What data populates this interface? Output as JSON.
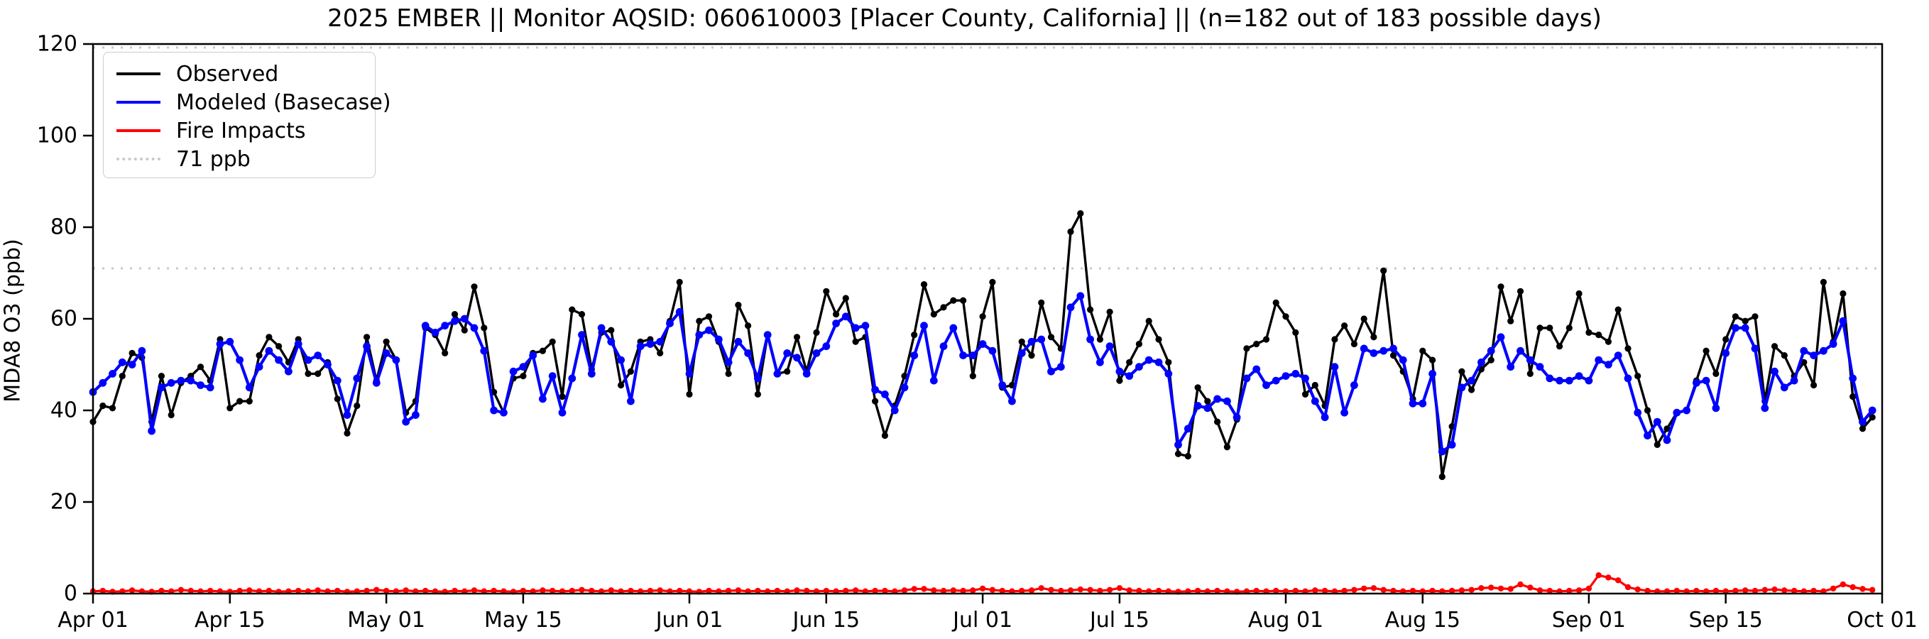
{
  "title": "2025 EMBER || Monitor AQSID: 060610003 [Placer County, California] || (n=182 out of 183 possible days)",
  "y_axis_label": "MDA8 O3 (ppb)",
  "legend": {
    "observed_label": "Observed",
    "modeled_label": "Modeled (Basecase)",
    "fire_label": "Fire Impacts",
    "threshold_label": "71 ppb"
  },
  "colors": {
    "observed": "#000000",
    "modeled": "#0000ff",
    "fire": "#ff0000",
    "threshold_line": "#c8c8c8",
    "axis": "#000000"
  },
  "chart_data": {
    "type": "line",
    "title": "2025 EMBER || Monitor AQSID: 060610003 [Placer County, California] || (n=182 out of 183 possible days)",
    "xlabel": "",
    "ylabel": "MDA8 O3 (ppb)",
    "ylim": [
      0,
      120
    ],
    "grid": false,
    "legend_position": "upper left",
    "x_start_date": "Apr 01",
    "x_end_date": "Oct 01",
    "days_total": 183,
    "threshold_ppb": 71,
    "x_ticks": [
      {
        "label": "Apr 01",
        "day": 0
      },
      {
        "label": "Apr 15",
        "day": 14
      },
      {
        "label": "May 01",
        "day": 30
      },
      {
        "label": "May 15",
        "day": 44
      },
      {
        "label": "Jun 01",
        "day": 61
      },
      {
        "label": "Jun 15",
        "day": 75
      },
      {
        "label": "Jul 01",
        "day": 91
      },
      {
        "label": "Jul 15",
        "day": 105
      },
      {
        "label": "Aug 01",
        "day": 122
      },
      {
        "label": "Aug 15",
        "day": 136
      },
      {
        "label": "Sep 01",
        "day": 153
      },
      {
        "label": "Sep 15",
        "day": 167
      },
      {
        "label": "Oct 01",
        "day": 183
      }
    ],
    "y_ticks": [
      0,
      20,
      40,
      60,
      80,
      100,
      120
    ],
    "series": [
      {
        "name": "Observed",
        "color": "#000000",
        "line_width": 3.4,
        "marker_radius": 4.6,
        "values": [
          37.5,
          41,
          40.5,
          47.5,
          52.5,
          51.5,
          37.5,
          47.5,
          39,
          46,
          47.5,
          49.5,
          46.5,
          55.5,
          40.5,
          42,
          42,
          52,
          56,
          54,
          50.5,
          55.5,
          48,
          48,
          50.5,
          42.5,
          35,
          41,
          56,
          46.5,
          55,
          51,
          39.5,
          42,
          58,
          56.5,
          52.5,
          61,
          57.5,
          67,
          58,
          44,
          39.5,
          47,
          47.5,
          52.5,
          53,
          55,
          43,
          62,
          61,
          49,
          57,
          57.5,
          45.5,
          48.5,
          55,
          55.5,
          52.5,
          59.5,
          68,
          43.5,
          59.5,
          60.5,
          55,
          48,
          63,
          58.5,
          43.5,
          56.5,
          48,
          48.5,
          56,
          48.5,
          57,
          66,
          61,
          64.5,
          55,
          56,
          42,
          34.5,
          41,
          47.5,
          56.5,
          67.5,
          61,
          62.5,
          64,
          64,
          47.5,
          60.5,
          68,
          45,
          45.5,
          55,
          52,
          63.5,
          56,
          53.5,
          79,
          83,
          62,
          55.5,
          61.5,
          46.5,
          50.5,
          54.5,
          59.5,
          55.5,
          50.5,
          30.5,
          30,
          45,
          42,
          37.5,
          32,
          38,
          53.5,
          54.5,
          55.5,
          63.5,
          60.5,
          57,
          43.5,
          45.5,
          41,
          55.5,
          58.5,
          54.5,
          60,
          56,
          70.5,
          52,
          48.5,
          42.5,
          53,
          51,
          25.5,
          36.5,
          48.5,
          44.5,
          49,
          51,
          67,
          59.5,
          66,
          48,
          58,
          58,
          54,
          58,
          65.5,
          57,
          56.5,
          55,
          62,
          53.5,
          47.5,
          40,
          32.5,
          36,
          39.5,
          40,
          46.5,
          53,
          48,
          55.5,
          60.5,
          59.5,
          60.5,
          42,
          54,
          52,
          47.5,
          50.5,
          45.5,
          68,
          55,
          65.5,
          43,
          36,
          38.5
        ]
      },
      {
        "name": "Modeled (Basecase)",
        "color": "#0000ff",
        "line_width": 4.2,
        "marker_radius": 5.4,
        "values": [
          44,
          46,
          48,
          50.5,
          50,
          53,
          35.5,
          45,
          46,
          46.5,
          46.5,
          45.5,
          45,
          54.5,
          55,
          51,
          45,
          49.5,
          53,
          51,
          48.5,
          54.5,
          51,
          52,
          50,
          46.5,
          39,
          47,
          54,
          46,
          52.5,
          51,
          37.5,
          39,
          58.5,
          57,
          58.5,
          59.5,
          60,
          58,
          53,
          40,
          39.5,
          48.5,
          49.5,
          52,
          42.5,
          47.5,
          39.5,
          47,
          56.5,
          48,
          58,
          55,
          51,
          42,
          54,
          54.5,
          55,
          59,
          61.5,
          48,
          56.5,
          57.5,
          55.5,
          50.5,
          55,
          52.5,
          47,
          56.5,
          48,
          52.5,
          51.5,
          48,
          52.5,
          54,
          59,
          60.5,
          58,
          58.5,
          44.5,
          43.5,
          40,
          45,
          52,
          58.5,
          46.5,
          54,
          58,
          52,
          52,
          54.5,
          53,
          45.5,
          42,
          52.5,
          55,
          55.5,
          48.5,
          49.5,
          62.5,
          65,
          55.5,
          50.5,
          54,
          48.5,
          47.5,
          49.5,
          51,
          50.5,
          48,
          32.5,
          36,
          41,
          40.5,
          42.5,
          42,
          38.5,
          47,
          49,
          45.5,
          46.5,
          47.5,
          48,
          47,
          42,
          38.5,
          49.5,
          39.5,
          45.5,
          53.5,
          52.5,
          53,
          53.5,
          51,
          41.5,
          41.5,
          48,
          31,
          32.5,
          45,
          46.5,
          50.5,
          53,
          56,
          49.5,
          53,
          51,
          49.5,
          47,
          46.5,
          46.5,
          47.5,
          46.5,
          51,
          50,
          52,
          47,
          39.5,
          34.5,
          37.5,
          33.5,
          39.5,
          40,
          46,
          46.5,
          40.5,
          52.5,
          58,
          58,
          53.5,
          40.5,
          48.5,
          45,
          46.5,
          53,
          52,
          53,
          54.5,
          59.5,
          47,
          37.5,
          40
        ]
      },
      {
        "name": "Fire Impacts",
        "color": "#ff0000",
        "line_width": 3.2,
        "marker_radius": 4.2,
        "values": [
          0.5,
          0.6,
          0.4,
          0.5,
          0.7,
          0.5,
          0.4,
          0.6,
          0.5,
          0.8,
          0.6,
          0.5,
          0.6,
          0.5,
          0.4,
          0.6,
          0.7,
          0.5,
          0.6,
          0.4,
          0.5,
          0.6,
          0.5,
          0.7,
          0.5,
          0.6,
          0.4,
          0.5,
          0.6,
          0.8,
          0.6,
          0.5,
          0.7,
          0.5,
          0.6,
          0.5,
          0.4,
          0.6,
          0.5,
          0.7,
          0.5,
          0.6,
          0.5,
          0.4,
          0.6,
          0.5,
          0.7,
          0.6,
          0.5,
          0.6,
          0.8,
          0.6,
          0.5,
          0.7,
          0.5,
          0.6,
          0.5,
          0.6,
          0.7,
          0.5,
          0.6,
          0.5,
          0.4,
          0.6,
          0.5,
          0.6,
          0.7,
          0.5,
          0.6,
          0.5,
          0.6,
          0.5,
          0.7,
          0.6,
          0.5,
          0.6,
          0.5,
          0.6,
          0.7,
          0.5,
          0.6,
          0.6,
          0.5,
          0.7,
          1.0,
          1.0,
          0.7,
          0.6,
          0.7,
          0.6,
          0.7,
          1.1,
          0.8,
          0.6,
          0.5,
          0.6,
          0.7,
          1.2,
          0.8,
          0.6,
          0.7,
          0.9,
          0.8,
          0.6,
          0.8,
          1.2,
          0.7,
          0.6,
          0.5,
          0.6,
          0.5,
          0.4,
          0.5,
          0.6,
          0.5,
          0.6,
          0.5,
          0.4,
          0.5,
          0.6,
          0.5,
          0.6,
          0.5,
          0.6,
          0.5,
          0.7,
          0.6,
          0.5,
          0.6,
          0.8,
          1.1,
          1.2,
          0.8,
          0.6,
          0.5,
          0.6,
          0.5,
          0.6,
          0.5,
          0.6,
          0.7,
          0.8,
          1.2,
          1.3,
          1.1,
          1.0,
          2.0,
          1.3,
          0.7,
          0.6,
          0.5,
          0.6,
          0.7,
          1.1,
          4.0,
          3.5,
          2.9,
          1.4,
          0.9,
          0.6,
          0.5,
          0.5,
          0.6,
          0.5,
          0.6,
          0.5,
          0.6,
          0.5,
          0.6,
          0.7,
          0.6,
          0.8,
          0.9,
          0.7,
          0.6,
          0.5,
          0.6,
          0.5,
          1.1,
          2.0,
          1.4,
          1.0,
          0.8
        ]
      }
    ]
  }
}
